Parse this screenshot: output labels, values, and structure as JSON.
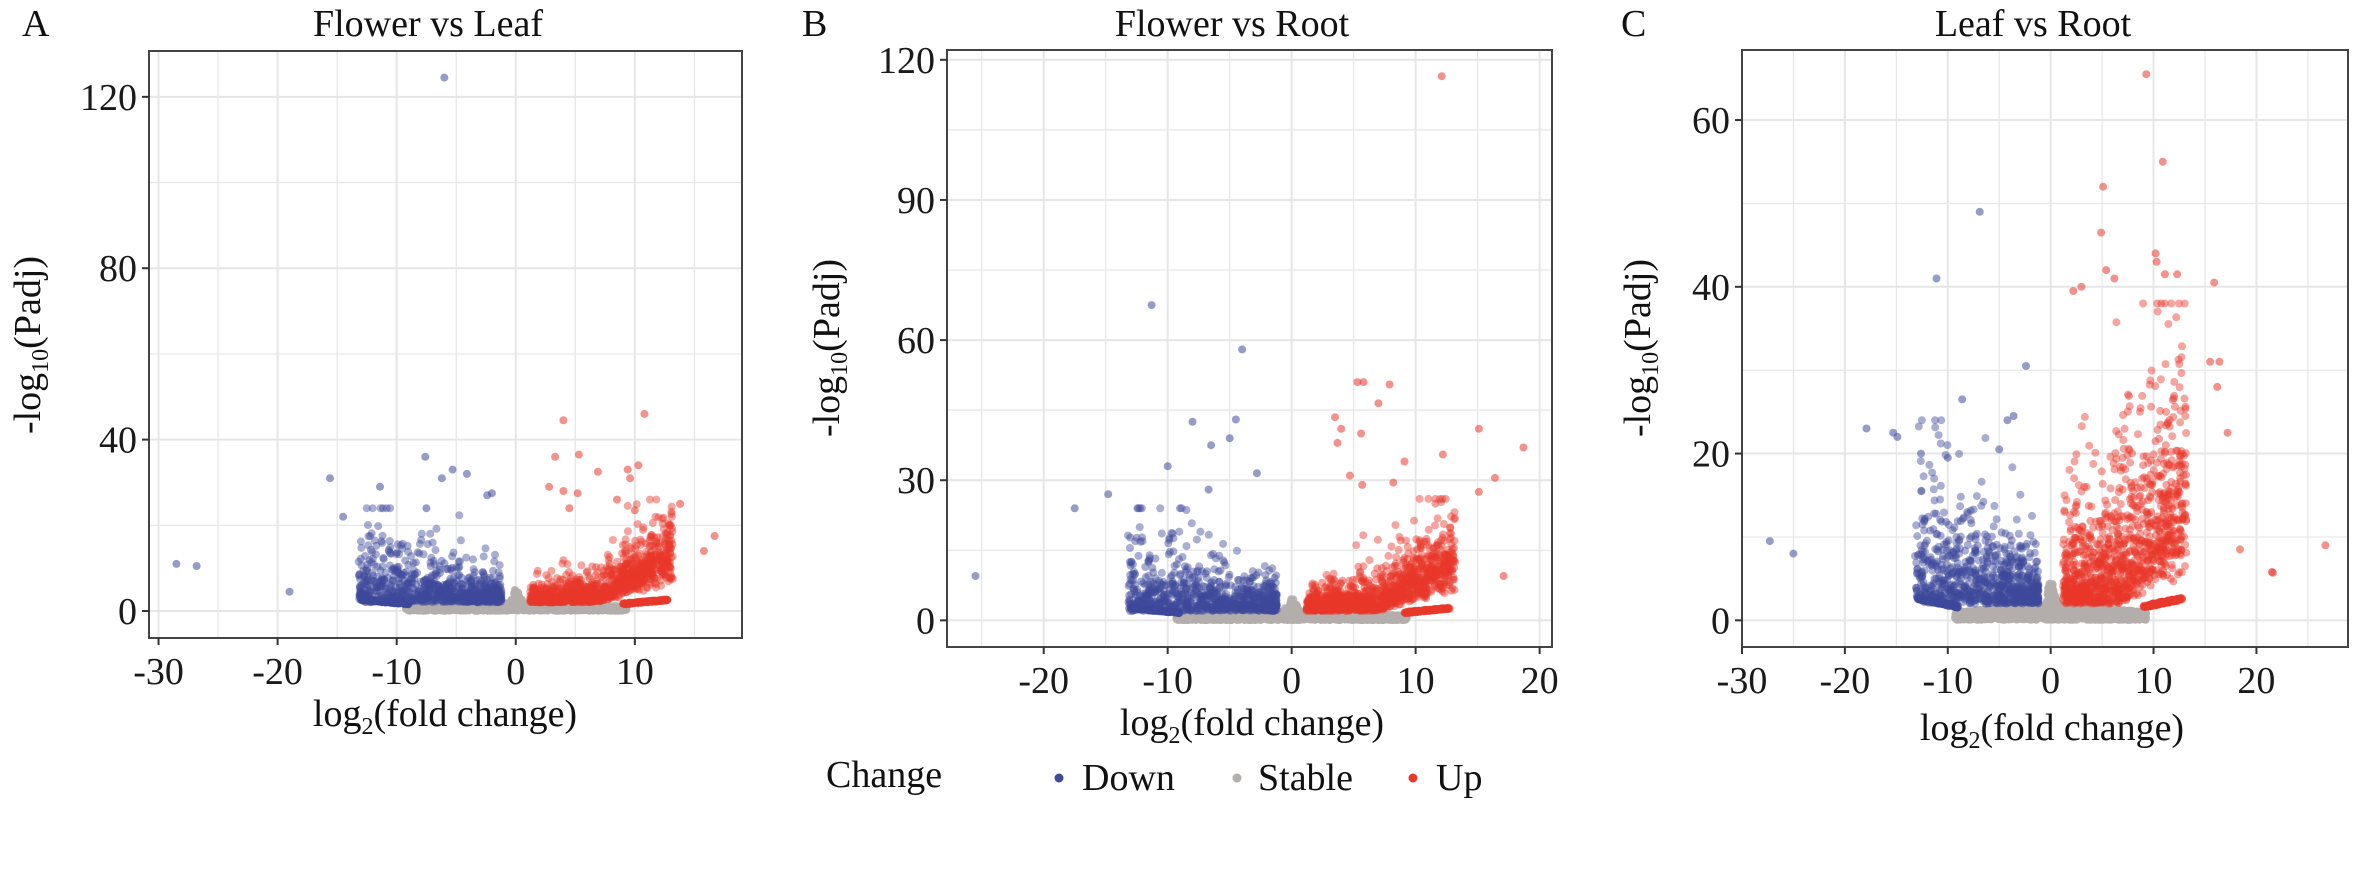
{
  "legend": {
    "title": "Change",
    "items": [
      {
        "label": "Down",
        "color": "#3f4a9b"
      },
      {
        "label": "Stable",
        "color": "#b2aeab"
      },
      {
        "label": "Up",
        "color": "#e8382a"
      }
    ]
  },
  "chart_data": [
    {
      "type": "scatter",
      "panel": "A",
      "title": "Flower vs Leaf",
      "xlabel": {
        "pre": "log",
        "sub": "2",
        "post": "(fold change)"
      },
      "ylabel": {
        "pre": "-log",
        "sub": "10",
        "post": "(Padj)"
      },
      "xlim": [
        -30.8,
        19
      ],
      "ylim": [
        -6.3,
        130.7
      ],
      "xticks": [
        -30,
        -20,
        -10,
        0,
        10
      ],
      "xtick_labels": [
        "-30",
        "-20",
        "-10",
        "0",
        "10"
      ],
      "yticks": [
        0,
        40,
        80,
        120
      ],
      "ytick_labels": [
        "0",
        "40",
        "80",
        "120"
      ],
      "grid": true,
      "series": [
        {
          "name": "Down",
          "points": [
            [
              -28.5,
              11
            ],
            [
              -26.8,
              10.5
            ],
            [
              -19,
              4.5
            ],
            [
              -15.6,
              31
            ],
            [
              -11.4,
              29
            ],
            [
              -7.6,
              36
            ],
            [
              -5.3,
              33
            ],
            [
              -4.1,
              32
            ],
            [
              -6.2,
              31
            ],
            [
              -6,
              124.5
            ],
            [
              -2.4,
              27
            ],
            [
              -2,
              27.5
            ],
            [
              -14.5,
              22
            ],
            [
              -7.5,
              24
            ]
          ]
        },
        {
          "name": "Up",
          "points": [
            [
              4,
              44.5
            ],
            [
              10.8,
              46
            ],
            [
              3.3,
              36
            ],
            [
              5.3,
              36.5
            ],
            [
              6.9,
              32.5
            ],
            [
              10.3,
              34
            ],
            [
              9.4,
              33
            ],
            [
              9.6,
              31
            ],
            [
              2.8,
              29
            ],
            [
              4,
              28
            ],
            [
              5.2,
              27.5
            ],
            [
              8.5,
              26
            ],
            [
              4.5,
              24
            ],
            [
              10,
              23.5
            ],
            [
              13.8,
              25
            ],
            [
              16.7,
              17.5
            ],
            [
              15.8,
              14
            ],
            [
              13,
              20
            ]
          ]
        }
      ]
    },
    {
      "type": "scatter",
      "panel": "B",
      "title": "Flower vs Root",
      "xlabel": {
        "pre": "log",
        "sub": "2",
        "post": "(fold change)"
      },
      "ylabel": {
        "pre": "-log",
        "sub": "10",
        "post": "(Padj)"
      },
      "xlim": [
        -27.8,
        21
      ],
      "ylim": [
        -5.7,
        122.1
      ],
      "xticks": [
        -20,
        -10,
        0,
        10,
        20
      ],
      "xtick_labels": [
        "-20",
        "-10",
        "0",
        "10",
        "20"
      ],
      "yticks": [
        0,
        30,
        60,
        90,
        120
      ],
      "ytick_labels": [
        "0",
        "30",
        "60",
        "90",
        "120"
      ],
      "grid": true,
      "series": [
        {
          "name": "Down",
          "points": [
            [
              -25.5,
              9.5
            ],
            [
              -11.3,
              67.5
            ],
            [
              -4,
              58
            ],
            [
              -10,
              33
            ],
            [
              -8,
              42.5
            ],
            [
              -4.5,
              43
            ],
            [
              -5,
              39
            ],
            [
              -6.5,
              37.5
            ],
            [
              -2.8,
              31.5
            ],
            [
              -17.5,
              24
            ],
            [
              -14.8,
              27
            ],
            [
              -6.7,
              28
            ]
          ]
        },
        {
          "name": "Up",
          "points": [
            [
              12.1,
              116.5
            ],
            [
              5.3,
              51
            ],
            [
              5.8,
              51
            ],
            [
              7.9,
              50.5
            ],
            [
              7,
              46.5
            ],
            [
              3.5,
              43.5
            ],
            [
              4,
              41
            ],
            [
              5.6,
              40
            ],
            [
              3.7,
              38
            ],
            [
              15.1,
              41
            ],
            [
              18.7,
              37
            ],
            [
              12.2,
              35.5
            ],
            [
              9.1,
              34
            ],
            [
              4.7,
              31
            ],
            [
              5.7,
              29
            ],
            [
              8.2,
              29.5
            ],
            [
              16.4,
              30.5
            ],
            [
              15.1,
              27.5
            ],
            [
              17.1,
              9.5
            ]
          ]
        }
      ]
    },
    {
      "type": "scatter",
      "panel": "C",
      "title": "Leaf vs Root",
      "xlabel": {
        "pre": "log",
        "sub": "2",
        "post": "(fold change)"
      },
      "ylabel": {
        "pre": "-log",
        "sub": "10",
        "post": "(Padj)"
      },
      "xlim": [
        -30,
        28.9
      ],
      "ylim": [
        -3.2,
        68.4
      ],
      "xticks": [
        -30,
        -20,
        -10,
        0,
        10,
        20
      ],
      "xtick_labels": [
        "-30",
        "-20",
        "-10",
        "0",
        "10",
        "20"
      ],
      "yticks": [
        0,
        20,
        40,
        60
      ],
      "ytick_labels": [
        "0",
        "20",
        "40",
        "60"
      ],
      "grid": true,
      "series": [
        {
          "name": "Down",
          "points": [
            [
              -27.3,
              9.5
            ],
            [
              -25,
              8
            ],
            [
              -6.9,
              49
            ],
            [
              -11.1,
              41
            ],
            [
              -2.4,
              30.5
            ],
            [
              -8.6,
              26.5
            ],
            [
              -17.9,
              23
            ],
            [
              -3.6,
              24.5
            ],
            [
              -4.2,
              24
            ],
            [
              -15.3,
              22.5
            ],
            [
              -14.9,
              22
            ],
            [
              -12.6,
              20
            ],
            [
              -10,
              19.5
            ],
            [
              -5,
              20.5
            ]
          ]
        },
        {
          "name": "Up",
          "points": [
            [
              9.3,
              65.5
            ],
            [
              10.9,
              55
            ],
            [
              5.1,
              52
            ],
            [
              4.9,
              46.5
            ],
            [
              10.2,
              44
            ],
            [
              10.3,
              43
            ],
            [
              11.1,
              41.5
            ],
            [
              12.3,
              41.5
            ],
            [
              15.9,
              40.5
            ],
            [
              5.4,
              42
            ],
            [
              6.2,
              41
            ],
            [
              2.2,
              39.5
            ],
            [
              3,
              40
            ],
            [
              15.5,
              31
            ],
            [
              16.4,
              31
            ],
            [
              16.2,
              28
            ],
            [
              17.2,
              22.5
            ],
            [
              18.4,
              8.5
            ],
            [
              26.7,
              9
            ],
            [
              21.5,
              5.8
            ],
            [
              21.6,
              5.7
            ]
          ]
        }
      ]
    }
  ]
}
